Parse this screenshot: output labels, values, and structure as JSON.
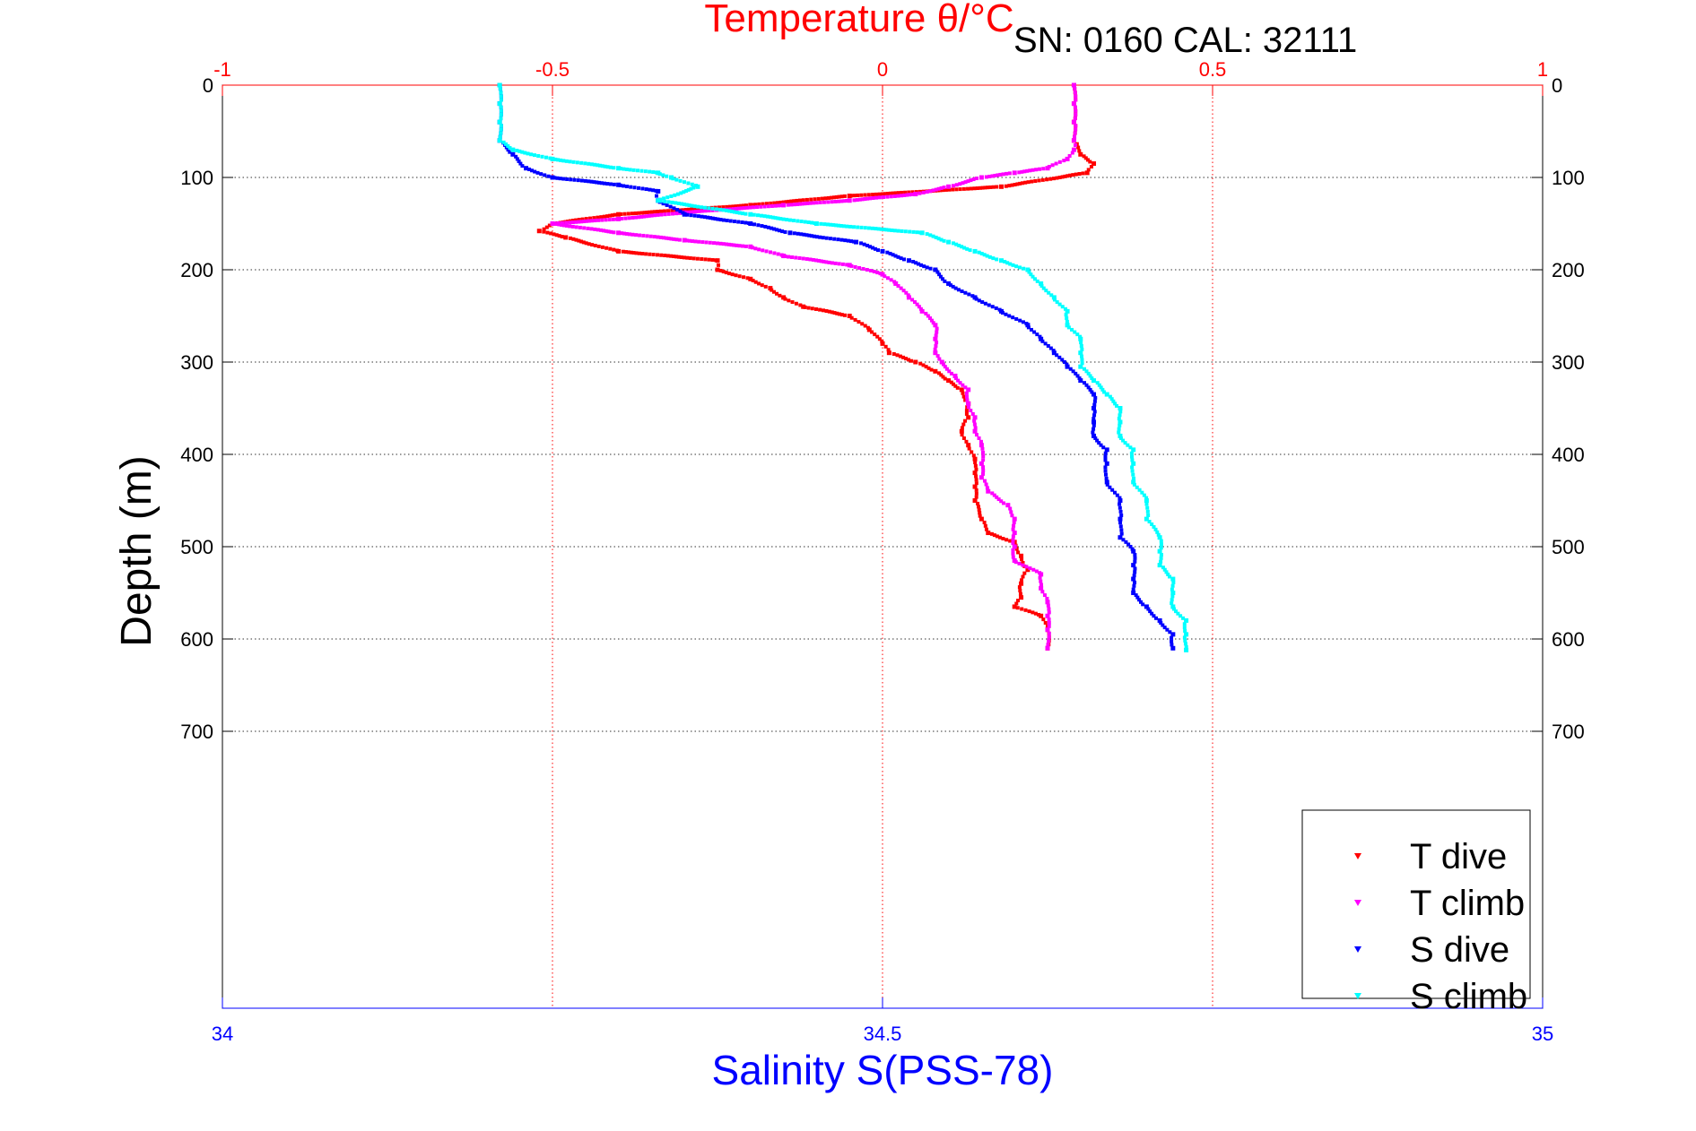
{
  "chart_data": {
    "type": "scatter",
    "title": "Temperature θ/°C",
    "annotation": "SN: 0160  CAL: 32111",
    "xlabel": "Salinity S(PSS-78)",
    "ylabel": "Depth (m)",
    "grid": true,
    "legend_position": "bottom-right",
    "y_reversed": true,
    "ylim": [
      0,
      1000
    ],
    "y_ticks": [
      0,
      100,
      200,
      300,
      400,
      500,
      600,
      700
    ],
    "y_tick_labels": [
      "0",
      "100",
      "200",
      "300",
      "400",
      "500",
      "600",
      "700"
    ],
    "x_top": {
      "label": "Temperature θ/°C",
      "lim": [
        -1,
        1
      ],
      "ticks": [
        -1,
        -0.5,
        0,
        0.5,
        1
      ],
      "tick_labels": [
        "-1",
        "-0.5",
        "0",
        "0.5",
        "1"
      ],
      "color": "#ff0000"
    },
    "x_bottom": {
      "label": "Salinity S(PSS-78)",
      "lim": [
        34,
        35
      ],
      "ticks": [
        34,
        34.5,
        35
      ],
      "tick_labels": [
        "34",
        "34.5",
        "35"
      ],
      "color": "#0000ff"
    },
    "series": [
      {
        "name": "T dive",
        "axis": "top",
        "color": "#ff0000",
        "points": [
          [
            0.29,
            0
          ],
          [
            0.29,
            20
          ],
          [
            0.29,
            40
          ],
          [
            0.29,
            60
          ],
          [
            0.3,
            75
          ],
          [
            0.32,
            85
          ],
          [
            0.31,
            95
          ],
          [
            0.18,
            110
          ],
          [
            -0.05,
            120
          ],
          [
            -0.2,
            130
          ],
          [
            -0.4,
            140
          ],
          [
            -0.5,
            150
          ],
          [
            -0.52,
            158
          ],
          [
            -0.48,
            165
          ],
          [
            -0.4,
            180
          ],
          [
            -0.25,
            190
          ],
          [
            -0.25,
            200
          ],
          [
            -0.2,
            210
          ],
          [
            -0.17,
            220
          ],
          [
            -0.15,
            230
          ],
          [
            -0.12,
            240
          ],
          [
            -0.05,
            250
          ],
          [
            -0.02,
            265
          ],
          [
            0.0,
            280
          ],
          [
            0.01,
            290
          ],
          [
            0.05,
            300
          ],
          [
            0.08,
            310
          ],
          [
            0.1,
            320
          ],
          [
            0.12,
            330
          ],
          [
            0.13,
            345
          ],
          [
            0.13,
            360
          ],
          [
            0.12,
            375
          ],
          [
            0.13,
            390
          ],
          [
            0.14,
            405
          ],
          [
            0.14,
            420
          ],
          [
            0.14,
            435
          ],
          [
            0.14,
            450
          ],
          [
            0.15,
            470
          ],
          [
            0.16,
            485
          ],
          [
            0.2,
            495
          ],
          [
            0.21,
            510
          ],
          [
            0.22,
            525
          ],
          [
            0.21,
            540
          ],
          [
            0.21,
            555
          ],
          [
            0.2,
            565
          ],
          [
            0.24,
            575
          ],
          [
            0.25,
            590
          ],
          [
            0.25,
            610
          ]
        ]
      },
      {
        "name": "T climb",
        "axis": "top",
        "color": "#ff00ff",
        "points": [
          [
            0.29,
            0
          ],
          [
            0.29,
            20
          ],
          [
            0.29,
            40
          ],
          [
            0.29,
            60
          ],
          [
            0.29,
            70
          ],
          [
            0.28,
            80
          ],
          [
            0.25,
            90
          ],
          [
            0.2,
            95
          ],
          [
            0.15,
            100
          ],
          [
            0.1,
            110
          ],
          [
            0.05,
            118
          ],
          [
            -0.05,
            125
          ],
          [
            -0.15,
            130
          ],
          [
            -0.3,
            138
          ],
          [
            -0.4,
            145
          ],
          [
            -0.5,
            150
          ],
          [
            -0.4,
            160
          ],
          [
            -0.3,
            168
          ],
          [
            -0.2,
            175
          ],
          [
            -0.15,
            185
          ],
          [
            -0.05,
            195
          ],
          [
            0.0,
            205
          ],
          [
            0.02,
            215
          ],
          [
            0.04,
            230
          ],
          [
            0.06,
            245
          ],
          [
            0.08,
            260
          ],
          [
            0.08,
            275
          ],
          [
            0.08,
            290
          ],
          [
            0.09,
            300
          ],
          [
            0.11,
            315
          ],
          [
            0.13,
            330
          ],
          [
            0.13,
            345
          ],
          [
            0.14,
            360
          ],
          [
            0.14,
            375
          ],
          [
            0.15,
            390
          ],
          [
            0.15,
            410
          ],
          [
            0.15,
            425
          ],
          [
            0.16,
            440
          ],
          [
            0.19,
            455
          ],
          [
            0.2,
            470
          ],
          [
            0.2,
            485
          ],
          [
            0.2,
            500
          ],
          [
            0.2,
            515
          ],
          [
            0.24,
            530
          ],
          [
            0.24,
            545
          ],
          [
            0.25,
            560
          ],
          [
            0.25,
            575
          ],
          [
            0.25,
            590
          ],
          [
            0.25,
            610
          ]
        ]
      },
      {
        "name": "S dive",
        "axis": "bottom",
        "color": "#0000ff",
        "points": [
          [
            34.21,
            0
          ],
          [
            34.21,
            20
          ],
          [
            34.21,
            40
          ],
          [
            34.21,
            60
          ],
          [
            34.22,
            75
          ],
          [
            34.23,
            90
          ],
          [
            34.25,
            100
          ],
          [
            34.3,
            108
          ],
          [
            34.33,
            115
          ],
          [
            34.33,
            125
          ],
          [
            34.35,
            140
          ],
          [
            34.4,
            150
          ],
          [
            34.43,
            160
          ],
          [
            34.48,
            170
          ],
          [
            34.5,
            180
          ],
          [
            34.52,
            190
          ],
          [
            34.54,
            200
          ],
          [
            34.55,
            215
          ],
          [
            34.57,
            230
          ],
          [
            34.59,
            245
          ],
          [
            34.61,
            260
          ],
          [
            34.62,
            275
          ],
          [
            34.63,
            290
          ],
          [
            34.64,
            305
          ],
          [
            34.65,
            320
          ],
          [
            34.66,
            335
          ],
          [
            34.66,
            350
          ],
          [
            34.66,
            365
          ],
          [
            34.66,
            380
          ],
          [
            34.67,
            395
          ],
          [
            34.67,
            410
          ],
          [
            34.67,
            430
          ],
          [
            34.68,
            450
          ],
          [
            34.68,
            470
          ],
          [
            34.68,
            490
          ],
          [
            34.69,
            505
          ],
          [
            34.69,
            520
          ],
          [
            34.69,
            535
          ],
          [
            34.69,
            550
          ],
          [
            34.7,
            565
          ],
          [
            34.71,
            580
          ],
          [
            34.72,
            595
          ],
          [
            34.72,
            610
          ]
        ]
      },
      {
        "name": "S climb",
        "axis": "bottom",
        "color": "#00ffff",
        "points": [
          [
            34.21,
            0
          ],
          [
            34.21,
            20
          ],
          [
            34.21,
            40
          ],
          [
            34.21,
            60
          ],
          [
            34.22,
            70
          ],
          [
            34.25,
            80
          ],
          [
            34.3,
            90
          ],
          [
            34.33,
            95
          ],
          [
            34.34,
            100
          ],
          [
            34.36,
            110
          ],
          [
            34.33,
            125
          ],
          [
            34.4,
            140
          ],
          [
            34.45,
            150
          ],
          [
            34.53,
            160
          ],
          [
            34.55,
            170
          ],
          [
            34.57,
            180
          ],
          [
            34.59,
            190
          ],
          [
            34.61,
            200
          ],
          [
            34.62,
            215
          ],
          [
            34.63,
            230
          ],
          [
            34.64,
            245
          ],
          [
            34.64,
            260
          ],
          [
            34.65,
            275
          ],
          [
            34.65,
            290
          ],
          [
            34.65,
            305
          ],
          [
            34.66,
            320
          ],
          [
            34.67,
            335
          ],
          [
            34.68,
            350
          ],
          [
            34.68,
            365
          ],
          [
            34.68,
            380
          ],
          [
            34.69,
            395
          ],
          [
            34.69,
            410
          ],
          [
            34.69,
            430
          ],
          [
            34.7,
            450
          ],
          [
            34.7,
            470
          ],
          [
            34.71,
            490
          ],
          [
            34.71,
            505
          ],
          [
            34.71,
            520
          ],
          [
            34.72,
            535
          ],
          [
            34.72,
            550
          ],
          [
            34.72,
            565
          ],
          [
            34.73,
            580
          ],
          [
            34.73,
            595
          ],
          [
            34.73,
            612
          ]
        ]
      }
    ]
  }
}
